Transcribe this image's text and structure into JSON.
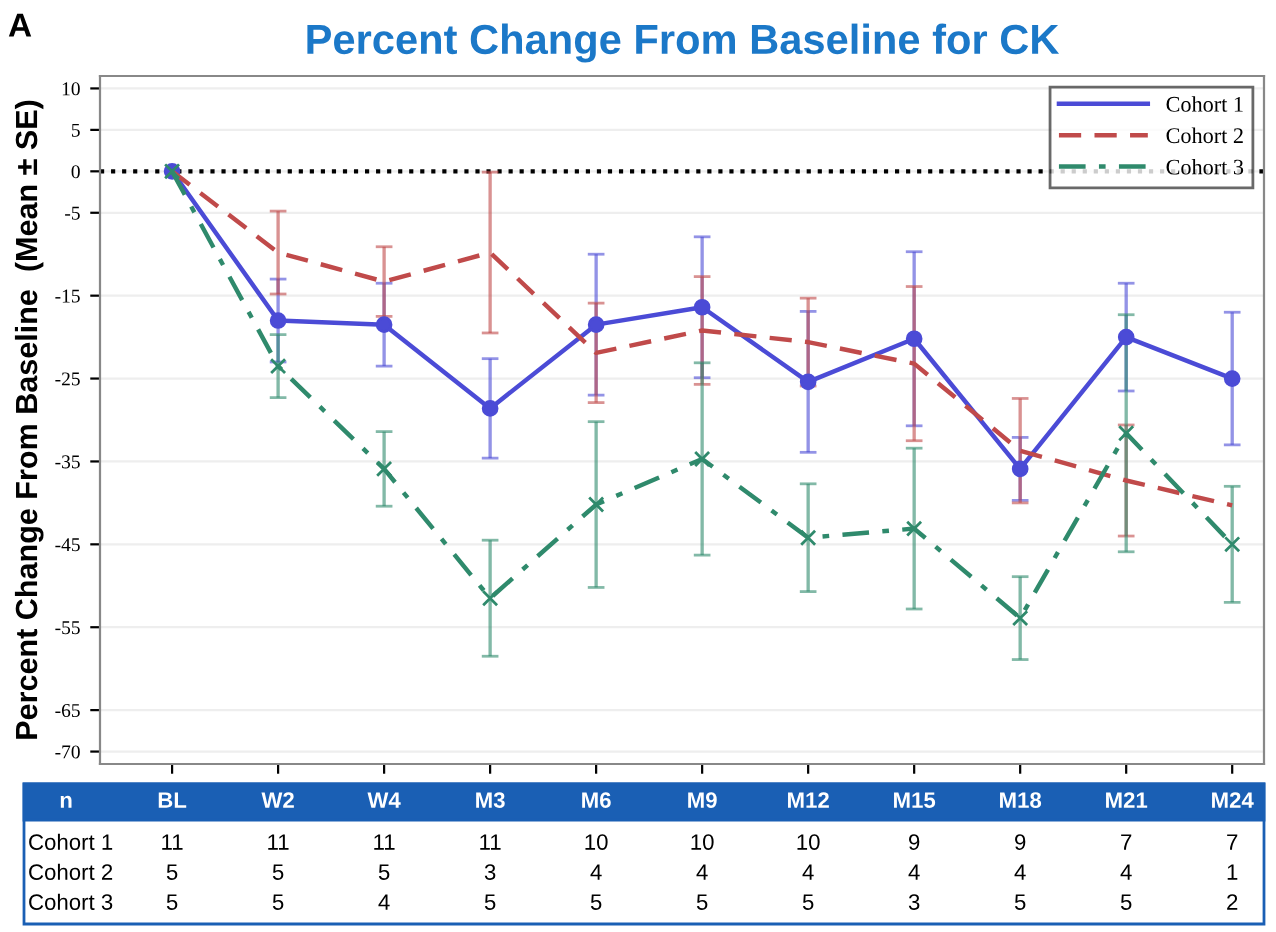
{
  "chart_data": {
    "type": "line",
    "title": "Percent Change From Baseline for CK",
    "ylabel": "Percent Change From Baseline  (Mean ± SE)",
    "categories": [
      "BL",
      "W2",
      "W4",
      "M3",
      "M6",
      "M9",
      "M12",
      "M15",
      "M18",
      "M21",
      "M24"
    ],
    "series": [
      {
        "name": "Cohort 1",
        "color": "#4b4bd6",
        "marker": "circle",
        "line_style": "solid",
        "values": [
          0,
          -18,
          -18.5,
          -28.6,
          -18.5,
          -16.4,
          -25.4,
          -20.2,
          -35.9,
          -20,
          -25
        ],
        "errors": [
          null,
          5,
          5,
          6,
          8.5,
          8.5,
          8.5,
          10.5,
          3.8,
          6.5,
          8
        ]
      },
      {
        "name": "Cohort 2",
        "color": "#c04a4a",
        "marker": "none",
        "line_style": "dashed",
        "values": [
          0,
          -9.8,
          -13.3,
          -9.8,
          -21.9,
          -19.2,
          -20.6,
          -23.2,
          -33.7,
          -37.3,
          -40.3
        ],
        "errors": [
          null,
          5,
          4.2,
          9.7,
          6,
          6.5,
          5.3,
          9.3,
          6.3,
          6.7,
          null
        ]
      },
      {
        "name": "Cohort 3",
        "color": "#2f8a6c",
        "marker": "cross",
        "line_style": "dashdot",
        "values": [
          0,
          -23.5,
          -35.9,
          -51.5,
          -40.2,
          -34.7,
          -44.2,
          -43.1,
          -53.9,
          -31.6,
          -45
        ],
        "errors": [
          null,
          3.8,
          4.5,
          7,
          10,
          11.6,
          6.5,
          9.7,
          5,
          14.3,
          7
        ]
      }
    ],
    "ylim": [
      -71.5,
      11.5
    ],
    "yticks": [
      10,
      5,
      0,
      -5,
      -15,
      -25,
      -35,
      -45,
      -55,
      -65,
      -70
    ],
    "ref_lines": [
      {
        "axis": "y",
        "value": 0,
        "color": "#000000",
        "line_style": "dotted"
      }
    ],
    "grid": "y",
    "legend": "top right",
    "annotations": [
      "A",
      "n",
      "Cohort 1",
      "11",
      "11",
      "11",
      "11",
      "10",
      "10",
      "10",
      "9",
      "9",
      "7",
      "7",
      "Cohort 2",
      "5",
      "5",
      "5",
      "3",
      "4",
      "4",
      "4",
      "4",
      "4",
      "4",
      "1",
      "Cohort 3",
      "5",
      "5",
      "4",
      "5",
      "5",
      "5",
      "5",
      "3",
      "5",
      "5",
      "2"
    ]
  }
}
